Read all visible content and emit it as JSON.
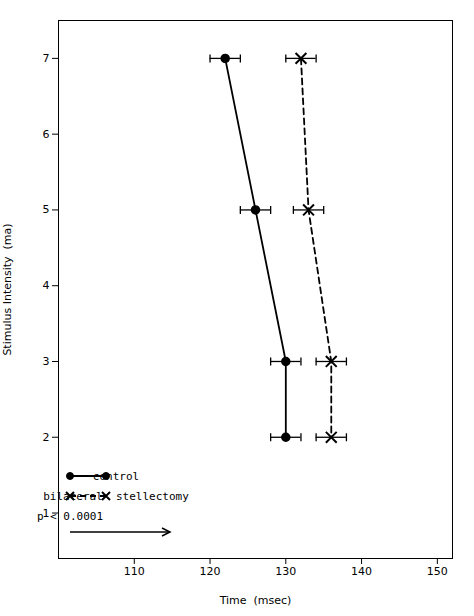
{
  "chart_data": {
    "type": "line",
    "xlabel": "Time  (msec)",
    "ylabel": "Stimulus Intensity  (ma)",
    "series": [
      {
        "name": "control",
        "color": "#000000",
        "marker": "circle",
        "line_style": "solid",
        "x": [
          122,
          126,
          130,
          130
        ],
        "values": [
          7,
          5,
          3,
          2
        ],
        "xerr": [
          2,
          2,
          2,
          2
        ]
      },
      {
        "name": "bilateral  stellectomy",
        "color": "#000000",
        "marker": "x",
        "line_style": "dashed",
        "x": [
          132,
          133,
          136,
          136
        ],
        "values": [
          7,
          5,
          3,
          2
        ],
        "xerr": [
          2,
          2,
          2,
          2
        ]
      }
    ],
    "annotation": "p < 0.0001",
    "xlim": [
      100,
      152
    ],
    "ylim": [
      0.4,
      7.5
    ],
    "xticks": [
      110,
      120,
      130,
      140,
      150
    ],
    "yticks": [
      1,
      2,
      3,
      4,
      5,
      6,
      7
    ],
    "legend": "lower left"
  }
}
